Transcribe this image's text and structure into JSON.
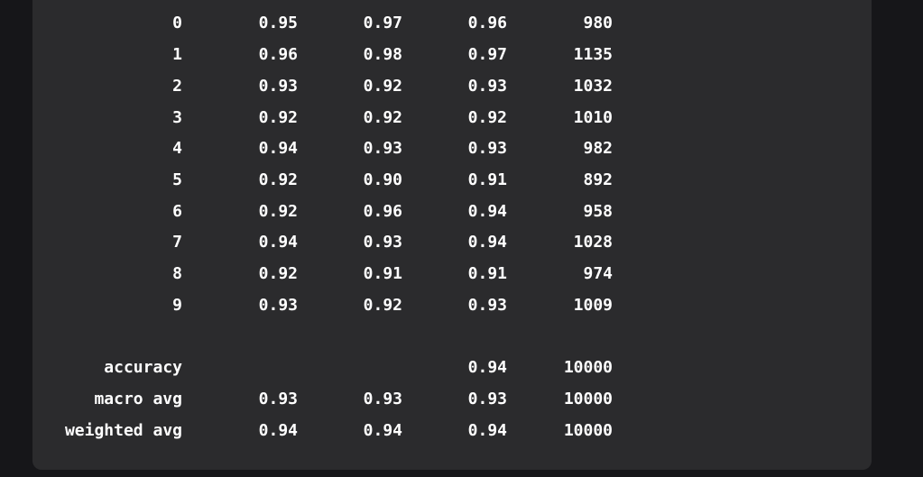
{
  "report": {
    "class_rows": [
      {
        "label": "0",
        "precision": "0.95",
        "recall": "0.97",
        "f1": "0.96",
        "support": "980"
      },
      {
        "label": "1",
        "precision": "0.96",
        "recall": "0.98",
        "f1": "0.97",
        "support": "1135"
      },
      {
        "label": "2",
        "precision": "0.93",
        "recall": "0.92",
        "f1": "0.93",
        "support": "1032"
      },
      {
        "label": "3",
        "precision": "0.92",
        "recall": "0.92",
        "f1": "0.92",
        "support": "1010"
      },
      {
        "label": "4",
        "precision": "0.94",
        "recall": "0.93",
        "f1": "0.93",
        "support": "982"
      },
      {
        "label": "5",
        "precision": "0.92",
        "recall": "0.90",
        "f1": "0.91",
        "support": "892"
      },
      {
        "label": "6",
        "precision": "0.92",
        "recall": "0.96",
        "f1": "0.94",
        "support": "958"
      },
      {
        "label": "7",
        "precision": "0.94",
        "recall": "0.93",
        "f1": "0.94",
        "support": "1028"
      },
      {
        "label": "8",
        "precision": "0.92",
        "recall": "0.91",
        "f1": "0.91",
        "support": "974"
      },
      {
        "label": "9",
        "precision": "0.93",
        "recall": "0.92",
        "f1": "0.93",
        "support": "1009"
      }
    ],
    "summary_rows": [
      {
        "label": "accuracy",
        "precision": "",
        "recall": "",
        "f1": "0.94",
        "support": "10000"
      },
      {
        "label": "macro avg",
        "precision": "0.93",
        "recall": "0.93",
        "f1": "0.93",
        "support": "10000"
      },
      {
        "label": "weighted avg",
        "precision": "0.94",
        "recall": "0.94",
        "f1": "0.94",
        "support": "10000"
      }
    ]
  },
  "colors": {
    "page_background": "#161619",
    "panel_background": "#2b2b2d",
    "text": "#ffffff"
  }
}
